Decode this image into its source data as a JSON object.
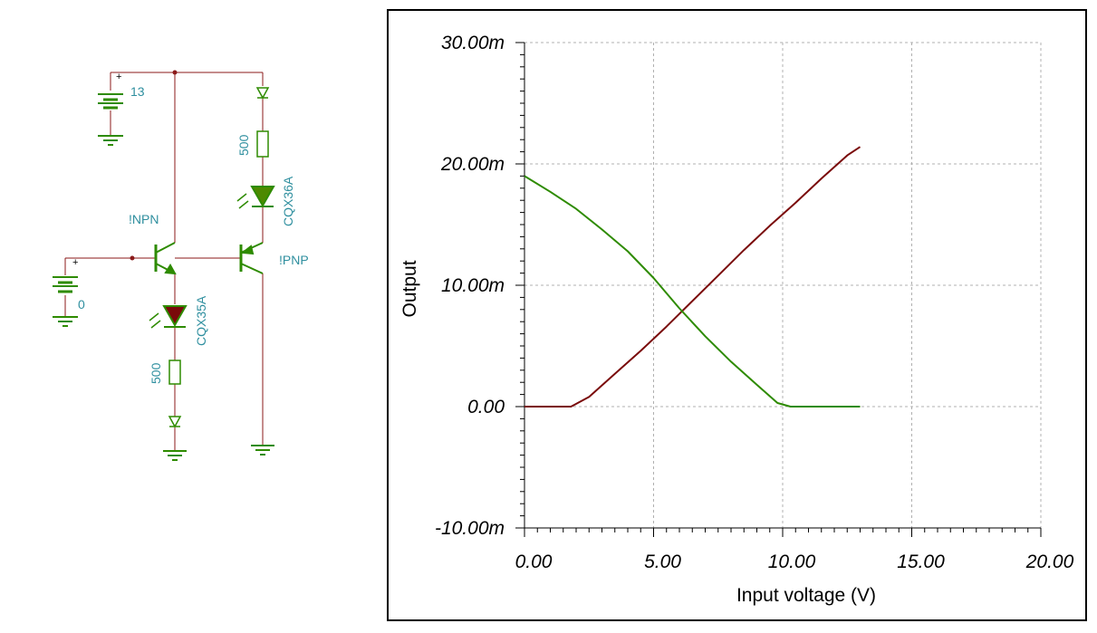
{
  "schematic": {
    "battery_top_value": "13",
    "battery_left_value": "0",
    "npn_label": "!NPN",
    "pnp_label": "!PNP",
    "led_top_label": "CQX36A",
    "led_bottom_label": "CQX35A",
    "resistor_top_value": "500",
    "resistor_bottom_value": "500",
    "colors": {
      "wire": "#8b1a1a",
      "component": "#2e8b00",
      "label": "#2f8f9f",
      "led_top_fill": "#4d8a00",
      "led_bottom_fill": "#7a0a0a"
    }
  },
  "chart_data": {
    "type": "line",
    "xlabel": "Input voltage (V)",
    "ylabel": "Output",
    "xlim": [
      0,
      20
    ],
    "ylim": [
      -10,
      30
    ],
    "x_ticks": [
      0,
      5,
      10,
      15,
      20
    ],
    "x_tick_labels": [
      "0.00",
      "5.00",
      "10.00",
      "15.00",
      "20.00"
    ],
    "y_ticks": [
      -10,
      0,
      10,
      20,
      30
    ],
    "y_tick_labels": [
      "-10.00m",
      "0.00",
      "10.00m",
      "20.00m",
      "30.00m"
    ],
    "grid": true,
    "series": [
      {
        "color": "#7a0a0a",
        "x": [
          0,
          1.8,
          2.5,
          3.5,
          4.5,
          5.5,
          6.5,
          7.5,
          8.5,
          9.5,
          10.5,
          11.5,
          12.5,
          13
        ],
        "y": [
          0,
          0,
          0.8,
          2.7,
          4.6,
          6.6,
          8.7,
          10.8,
          12.9,
          14.9,
          16.8,
          18.8,
          20.7,
          21.4
        ]
      },
      {
        "color": "#2e8b00",
        "x": [
          0,
          1,
          2,
          3,
          4,
          5,
          6,
          7,
          8,
          9,
          9.8,
          10.3,
          11,
          12,
          13
        ],
        "y": [
          19,
          17.7,
          16.3,
          14.6,
          12.8,
          10.6,
          8.1,
          5.8,
          3.7,
          1.8,
          0.3,
          0,
          0,
          0,
          0
        ]
      }
    ]
  }
}
